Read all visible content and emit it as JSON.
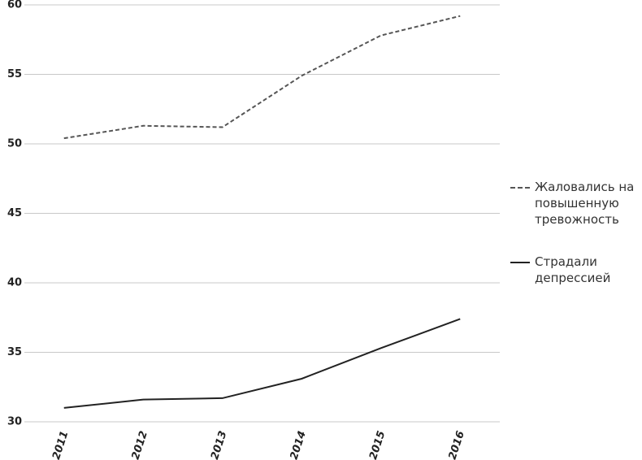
{
  "chart_data": {
    "type": "line",
    "categories": [
      "2011",
      "2012",
      "2013",
      "2014",
      "2015",
      "2016"
    ],
    "series": [
      {
        "name": "Жаловались на повышенную тревожность",
        "color": "#555555",
        "style": "dashed",
        "values": [
          50.4,
          51.3,
          51.2,
          54.9,
          57.8,
          59.2
        ]
      },
      {
        "name": "Страдали депрессией",
        "color": "#222222",
        "style": "solid",
        "values": [
          31.0,
          31.6,
          31.7,
          33.1,
          35.3,
          37.4
        ]
      }
    ],
    "ylim": [
      30,
      60
    ],
    "yticks": [
      30,
      35,
      40,
      45,
      50,
      55,
      60
    ],
    "grid": true,
    "legend": "right"
  }
}
